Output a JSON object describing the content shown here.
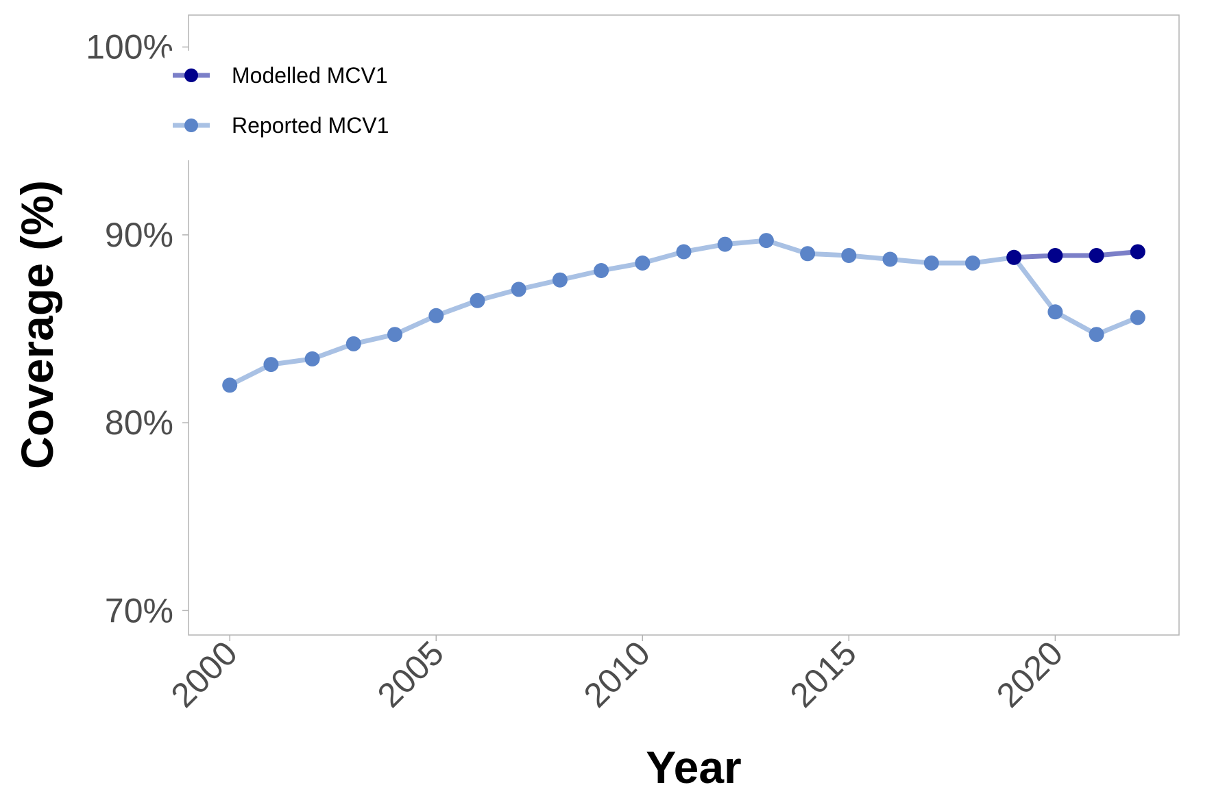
{
  "chart_data": {
    "type": "line",
    "xlabel": "Year",
    "ylabel": "Coverage (%)",
    "xlim": [
      1999,
      2023
    ],
    "ylim": [
      68.7,
      101.7
    ],
    "x_ticks": [
      2000,
      2005,
      2010,
      2015,
      2020
    ],
    "y_ticks": [
      70,
      80,
      90,
      100
    ],
    "y_tick_format": "percent",
    "grid": false,
    "legend_position": "top-left",
    "series": [
      {
        "name": "Modelled MCV1",
        "line_color": "#7b7fc8",
        "point_color": "#00008b",
        "x": [
          2019,
          2020,
          2021,
          2022
        ],
        "values": [
          88.8,
          88.9,
          88.9,
          89.1
        ]
      },
      {
        "name": "Reported MCV1",
        "line_color": "#a9c1e4",
        "point_color": "#5b84c8",
        "x": [
          2000,
          2001,
          2002,
          2003,
          2004,
          2005,
          2006,
          2007,
          2008,
          2009,
          2010,
          2011,
          2012,
          2013,
          2014,
          2015,
          2016,
          2017,
          2018,
          2019,
          2020,
          2021,
          2022
        ],
        "values": [
          82.0,
          83.1,
          83.4,
          84.2,
          84.7,
          85.7,
          86.5,
          87.1,
          87.6,
          88.1,
          88.5,
          89.1,
          89.5,
          89.7,
          89.0,
          88.9,
          88.7,
          88.5,
          88.5,
          88.8,
          85.9,
          84.7,
          85.6
        ]
      }
    ]
  }
}
